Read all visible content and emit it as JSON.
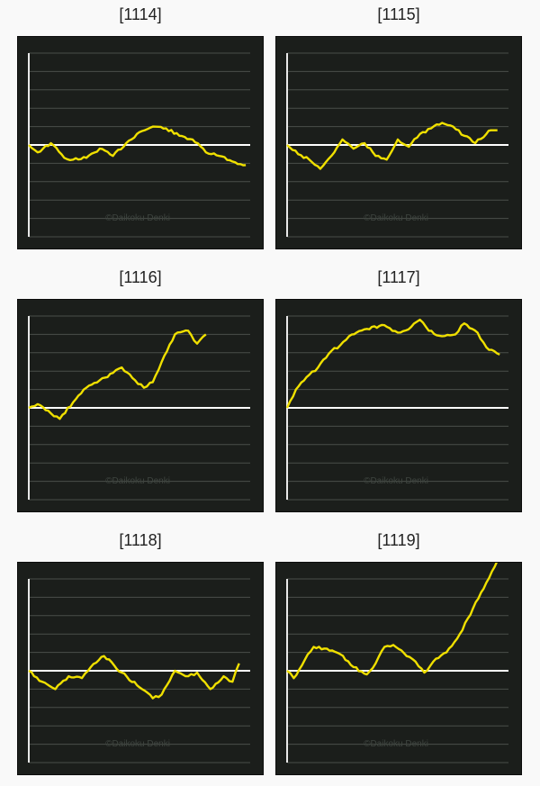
{
  "charts": [
    {
      "label": "[1114]"
    },
    {
      "label": "[1115]"
    },
    {
      "label": "[1116]"
    },
    {
      "label": "[1117]"
    },
    {
      "label": "[1118]"
    },
    {
      "label": "[1119]"
    }
  ],
  "watermark": "©Daikoku Denki",
  "colors": {
    "background": "#1b1e1b",
    "grid": "#4a4f4a",
    "baseline": "#ffffff",
    "line": "#f0e000"
  },
  "chart_data": [
    {
      "type": "line",
      "title": "[1114]",
      "x": [
        0,
        0.04,
        0.1,
        0.16,
        0.2,
        0.26,
        0.32,
        0.38,
        0.44,
        0.5,
        0.56,
        0.62,
        0.68,
        0.74,
        0.8,
        0.86,
        0.92,
        0.98
      ],
      "y": [
        0,
        -0.4,
        0.1,
        -0.7,
        -0.8,
        -0.7,
        -0.2,
        -0.6,
        0.1,
        0.7,
        1.0,
        0.9,
        0.5,
        0.3,
        -0.4,
        -0.6,
        -0.9,
        -1.1
      ]
    },
    {
      "type": "line",
      "title": "[1115]",
      "x": [
        0,
        0.05,
        0.1,
        0.15,
        0.2,
        0.25,
        0.3,
        0.35,
        0.4,
        0.45,
        0.5,
        0.55,
        0.6,
        0.65,
        0.7,
        0.75,
        0.8,
        0.85,
        0.9,
        0.92,
        0.95
      ],
      "y": [
        0,
        -0.5,
        -0.8,
        -1.3,
        -0.6,
        0.3,
        -0.2,
        0.1,
        -0.6,
        -0.8,
        0.3,
        -0.1,
        0.6,
        0.9,
        1.2,
        1.0,
        0.5,
        0.1,
        0.6,
        0.8,
        0.8
      ]
    },
    {
      "type": "line",
      "title": "[1116]",
      "x": [
        0,
        0.04,
        0.1,
        0.14,
        0.2,
        0.26,
        0.32,
        0.38,
        0.42,
        0.48,
        0.52,
        0.56,
        0.6,
        0.66,
        0.72,
        0.76,
        0.8
      ],
      "y": [
        0,
        0.2,
        -0.3,
        -0.6,
        0.3,
        1.1,
        1.5,
        1.9,
        2.2,
        1.5,
        1.1,
        1.4,
        2.5,
        4.0,
        4.2,
        3.5,
        4.0
      ]
    },
    {
      "type": "line",
      "title": "[1117]",
      "x": [
        0,
        0.04,
        0.1,
        0.14,
        0.2,
        0.24,
        0.28,
        0.36,
        0.44,
        0.5,
        0.56,
        0.6,
        0.64,
        0.7,
        0.76,
        0.8,
        0.86,
        0.9,
        0.96
      ],
      "y": [
        0,
        1.0,
        1.8,
        2.2,
        3.1,
        3.4,
        3.9,
        4.3,
        4.5,
        4.1,
        4.4,
        4.8,
        4.2,
        3.9,
        4.0,
        4.6,
        4.1,
        3.3,
        2.9
      ]
    },
    {
      "type": "line",
      "title": "[1118]",
      "x": [
        0,
        0.06,
        0.12,
        0.18,
        0.24,
        0.28,
        0.34,
        0.42,
        0.5,
        0.56,
        0.6,
        0.66,
        0.72,
        0.76,
        0.82,
        0.88,
        0.92,
        0.95
      ],
      "y": [
        0,
        -0.6,
        -1.0,
        -0.3,
        -0.4,
        0.2,
        0.8,
        -0.1,
        -0.9,
        -1.5,
        -1.3,
        0.0,
        -0.3,
        -0.1,
        -1.0,
        -0.3,
        -0.6,
        0.4
      ]
    },
    {
      "type": "line",
      "title": "[1119]",
      "x": [
        0,
        0.03,
        0.08,
        0.12,
        0.18,
        0.24,
        0.3,
        0.36,
        0.4,
        0.44,
        0.48,
        0.54,
        0.58,
        0.62,
        0.66,
        0.72,
        0.78,
        0.84,
        0.9,
        0.95
      ],
      "y": [
        0,
        -0.4,
        0.6,
        1.3,
        1.2,
        0.9,
        0.2,
        -0.2,
        0.4,
        1.3,
        1.4,
        0.8,
        0.5,
        -0.1,
        0.5,
        1.0,
        2.0,
        3.4,
        4.8,
        6.0
      ]
    }
  ]
}
